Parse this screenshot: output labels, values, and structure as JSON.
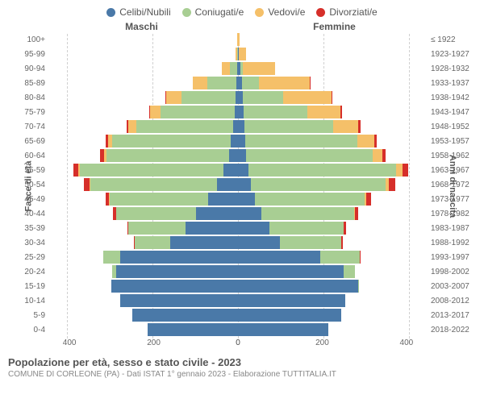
{
  "legend": [
    {
      "label": "Celibi/Nubili",
      "color": "#4a79a8"
    },
    {
      "label": "Coniugati/e",
      "color": "#a8ce93"
    },
    {
      "label": "Vedovi/e",
      "color": "#f5c069"
    },
    {
      "label": "Divorziati/e",
      "color": "#d62f2a"
    }
  ],
  "header_male": "Maschi",
  "header_female": "Femmine",
  "ylabel_left": "Fasce di età",
  "ylabel_right": "Anni di nascita",
  "title": "Popolazione per età, sesso e stato civile - 2023",
  "subtitle": "COMUNE DI CORLEONE (PA) - Dati ISTAT 1° gennaio 2023 - Elaborazione TUTTITALIA.IT",
  "xmax": 450,
  "xticks": [
    0,
    200,
    400
  ],
  "colors": {
    "celibi": "#4a79a8",
    "coniugati": "#a8ce93",
    "vedovi": "#f5c069",
    "divorziati": "#d62f2a",
    "grid": "#d0d0d0",
    "background": "#ffffff"
  },
  "rows": [
    {
      "age": "100+",
      "birth": "≤ 1922",
      "m": {
        "c": 0,
        "co": 0,
        "v": 1,
        "d": 0
      },
      "f": {
        "c": 0,
        "co": 0,
        "v": 3,
        "d": 0
      }
    },
    {
      "age": "95-99",
      "birth": "1923-1927",
      "m": {
        "c": 0,
        "co": 2,
        "v": 3,
        "d": 0
      },
      "f": {
        "c": 1,
        "co": 0,
        "v": 18,
        "d": 0
      }
    },
    {
      "age": "90-94",
      "birth": "1928-1932",
      "m": {
        "c": 2,
        "co": 18,
        "v": 18,
        "d": 0
      },
      "f": {
        "c": 5,
        "co": 6,
        "v": 78,
        "d": 0
      }
    },
    {
      "age": "85-89",
      "birth": "1933-1937",
      "m": {
        "c": 3,
        "co": 70,
        "v": 35,
        "d": 0
      },
      "f": {
        "c": 10,
        "co": 40,
        "v": 120,
        "d": 2
      }
    },
    {
      "age": "80-84",
      "birth": "1938-1942",
      "m": {
        "c": 5,
        "co": 130,
        "v": 35,
        "d": 2
      },
      "f": {
        "c": 12,
        "co": 95,
        "v": 115,
        "d": 3
      }
    },
    {
      "age": "75-79",
      "birth": "1943-1947",
      "m": {
        "c": 8,
        "co": 175,
        "v": 25,
        "d": 3
      },
      "f": {
        "c": 14,
        "co": 150,
        "v": 80,
        "d": 3
      }
    },
    {
      "age": "70-74",
      "birth": "1948-1952",
      "m": {
        "c": 12,
        "co": 230,
        "v": 18,
        "d": 5
      },
      "f": {
        "c": 16,
        "co": 210,
        "v": 60,
        "d": 6
      }
    },
    {
      "age": "65-69",
      "birth": "1953-1957",
      "m": {
        "c": 18,
        "co": 280,
        "v": 10,
        "d": 6
      },
      "f": {
        "c": 18,
        "co": 265,
        "v": 40,
        "d": 6
      }
    },
    {
      "age": "60-64",
      "birth": "1958-1962",
      "m": {
        "c": 22,
        "co": 290,
        "v": 6,
        "d": 10
      },
      "f": {
        "c": 20,
        "co": 300,
        "v": 22,
        "d": 8
      }
    },
    {
      "age": "55-59",
      "birth": "1963-1967",
      "m": {
        "c": 35,
        "co": 340,
        "v": 4,
        "d": 12
      },
      "f": {
        "c": 25,
        "co": 350,
        "v": 15,
        "d": 14
      }
    },
    {
      "age": "50-54",
      "birth": "1968-1972",
      "m": {
        "c": 50,
        "co": 300,
        "v": 3,
        "d": 12
      },
      "f": {
        "c": 30,
        "co": 320,
        "v": 8,
        "d": 15
      }
    },
    {
      "age": "45-49",
      "birth": "1973-1977",
      "m": {
        "c": 70,
        "co": 235,
        "v": 1,
        "d": 8
      },
      "f": {
        "c": 40,
        "co": 260,
        "v": 4,
        "d": 12
      }
    },
    {
      "age": "40-44",
      "birth": "1978-1982",
      "m": {
        "c": 100,
        "co": 190,
        "v": 0,
        "d": 6
      },
      "f": {
        "c": 55,
        "co": 220,
        "v": 2,
        "d": 8
      }
    },
    {
      "age": "35-39",
      "birth": "1983-1987",
      "m": {
        "c": 125,
        "co": 135,
        "v": 0,
        "d": 3
      },
      "f": {
        "c": 75,
        "co": 175,
        "v": 1,
        "d": 5
      }
    },
    {
      "age": "30-34",
      "birth": "1988-1992",
      "m": {
        "c": 160,
        "co": 85,
        "v": 0,
        "d": 2
      },
      "f": {
        "c": 100,
        "co": 145,
        "v": 0,
        "d": 4
      }
    },
    {
      "age": "25-29",
      "birth": "1993-1997",
      "m": {
        "c": 280,
        "co": 40,
        "v": 0,
        "d": 0
      },
      "f": {
        "c": 195,
        "co": 95,
        "v": 0,
        "d": 1
      }
    },
    {
      "age": "20-24",
      "birth": "1998-2002",
      "m": {
        "c": 290,
        "co": 8,
        "v": 0,
        "d": 0
      },
      "f": {
        "c": 250,
        "co": 28,
        "v": 0,
        "d": 0
      }
    },
    {
      "age": "15-19",
      "birth": "2003-2007",
      "m": {
        "c": 300,
        "co": 0,
        "v": 0,
        "d": 0
      },
      "f": {
        "c": 285,
        "co": 2,
        "v": 0,
        "d": 0
      }
    },
    {
      "age": "10-14",
      "birth": "2008-2012",
      "m": {
        "c": 280,
        "co": 0,
        "v": 0,
        "d": 0
      },
      "f": {
        "c": 255,
        "co": 0,
        "v": 0,
        "d": 0
      }
    },
    {
      "age": "5-9",
      "birth": "2013-2017",
      "m": {
        "c": 250,
        "co": 0,
        "v": 0,
        "d": 0
      },
      "f": {
        "c": 245,
        "co": 0,
        "v": 0,
        "d": 0
      }
    },
    {
      "age": "0-4",
      "birth": "2018-2022",
      "m": {
        "c": 215,
        "co": 0,
        "v": 0,
        "d": 0
      },
      "f": {
        "c": 215,
        "co": 0,
        "v": 0,
        "d": 0
      }
    }
  ]
}
